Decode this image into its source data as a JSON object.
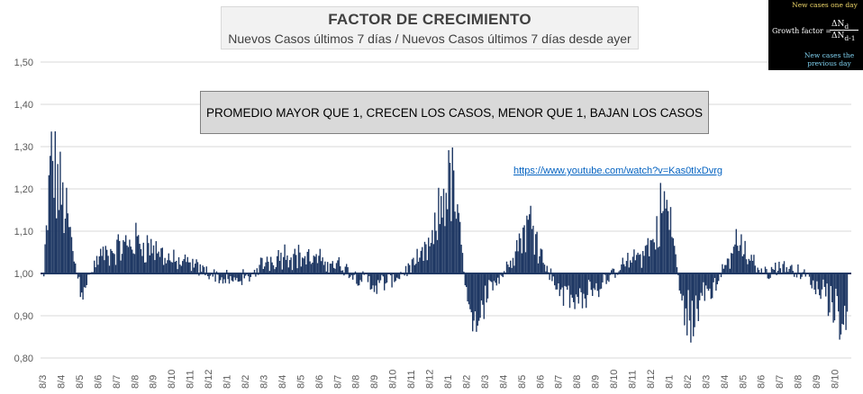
{
  "title": "FACTOR DE CRECIMIENTO",
  "subtitle": "Nuevos Casos últimos 7 días / Nuevos Casos últimos 7 días desde ayer",
  "annotation": "PROMEDIO MAYOR QUE 1, CRECEN LOS CASOS, MENOR QUE 1, BAJAN LOS CASOS",
  "link": "https://www.youtube.com/watch?v=Kas0tIxDvrg",
  "formula": {
    "top_label": "New cases one day",
    "label": "Growth factor =",
    "numerator": "ΔN",
    "numerator_sub": "d",
    "denominator": "ΔN",
    "denominator_sub": "d-1",
    "bottom_label": "New cases the previous day"
  },
  "colors": {
    "series": "#1f3864",
    "grid": "#d9d9d9",
    "axis_text": "#595959"
  },
  "chart_data": {
    "type": "bar",
    "baseline": 1.0,
    "ylim": [
      0.8,
      1.5
    ],
    "yticks": [
      "0,80",
      "0,90",
      "1,00",
      "1,10",
      "1,20",
      "1,30",
      "1,40",
      "1,50"
    ],
    "yticks_values": [
      0.8,
      0.9,
      1.0,
      1.1,
      1.2,
      1.3,
      1.4,
      1.5
    ],
    "xticks": [
      "8/3",
      "8/4",
      "8/5",
      "8/6",
      "8/7",
      "8/8",
      "8/9",
      "8/10",
      "8/11",
      "8/12",
      "8/1",
      "8/2",
      "8/3",
      "8/4",
      "8/5",
      "8/6",
      "8/7",
      "8/8",
      "8/9",
      "8/10",
      "8/11",
      "8/12",
      "8/1",
      "8/2",
      "8/3",
      "8/4",
      "8/5",
      "8/6",
      "8/7",
      "8/8",
      "8/9",
      "8/10",
      "8/11",
      "8/12",
      "8/1",
      "8/2",
      "8/3",
      "8/4",
      "8/5",
      "8/6",
      "8/7",
      "8/8",
      "8/9",
      "8/10"
    ],
    "grid": true,
    "legend": "none",
    "series_anchors": [
      [
        0,
        1.0
      ],
      [
        0.4,
        1.28
      ],
      [
        1.2,
        1.15
      ],
      [
        2.0,
        0.95
      ],
      [
        3.0,
        1.04
      ],
      [
        4.0,
        1.06
      ],
      [
        5.0,
        1.08
      ],
      [
        6.0,
        1.06
      ],
      [
        7.0,
        1.03
      ],
      [
        8.0,
        1.02
      ],
      [
        9.0,
        1.0
      ],
      [
        10.0,
        0.98
      ],
      [
        11.0,
        0.99
      ],
      [
        12.0,
        1.03
      ],
      [
        13.0,
        1.05
      ],
      [
        14.0,
        1.04
      ],
      [
        15.0,
        1.03
      ],
      [
        16.0,
        1.02
      ],
      [
        17.0,
        0.99
      ],
      [
        18.0,
        0.97
      ],
      [
        19.0,
        0.99
      ],
      [
        20.0,
        1.02
      ],
      [
        21.0,
        1.07
      ],
      [
        21.8,
        1.23
      ],
      [
        22.2,
        1.2
      ],
      [
        22.8,
        0.97
      ],
      [
        23.3,
        0.89
      ],
      [
        24.0,
        0.95
      ],
      [
        25.0,
        1.01
      ],
      [
        26.0,
        1.11
      ],
      [
        26.5,
        1.13
      ],
      [
        27.0,
        1.03
      ],
      [
        28.0,
        0.95
      ],
      [
        29.0,
        0.94
      ],
      [
        30.0,
        0.96
      ],
      [
        31.0,
        1.01
      ],
      [
        32.0,
        1.04
      ],
      [
        33.0,
        1.08
      ],
      [
        33.5,
        1.18
      ],
      [
        34.0,
        1.1
      ],
      [
        34.5,
        0.92
      ],
      [
        35.0,
        0.88
      ],
      [
        36.0,
        0.95
      ],
      [
        37.0,
        1.03
      ],
      [
        37.5,
        1.08
      ],
      [
        38.0,
        1.04
      ],
      [
        39.0,
        1.0
      ],
      [
        40.0,
        1.02
      ],
      [
        41.0,
        1.0
      ],
      [
        42.0,
        0.96
      ],
      [
        42.8,
        0.9
      ],
      [
        43.2,
        0.86
      ],
      [
        43.5,
        0.86
      ]
    ]
  }
}
